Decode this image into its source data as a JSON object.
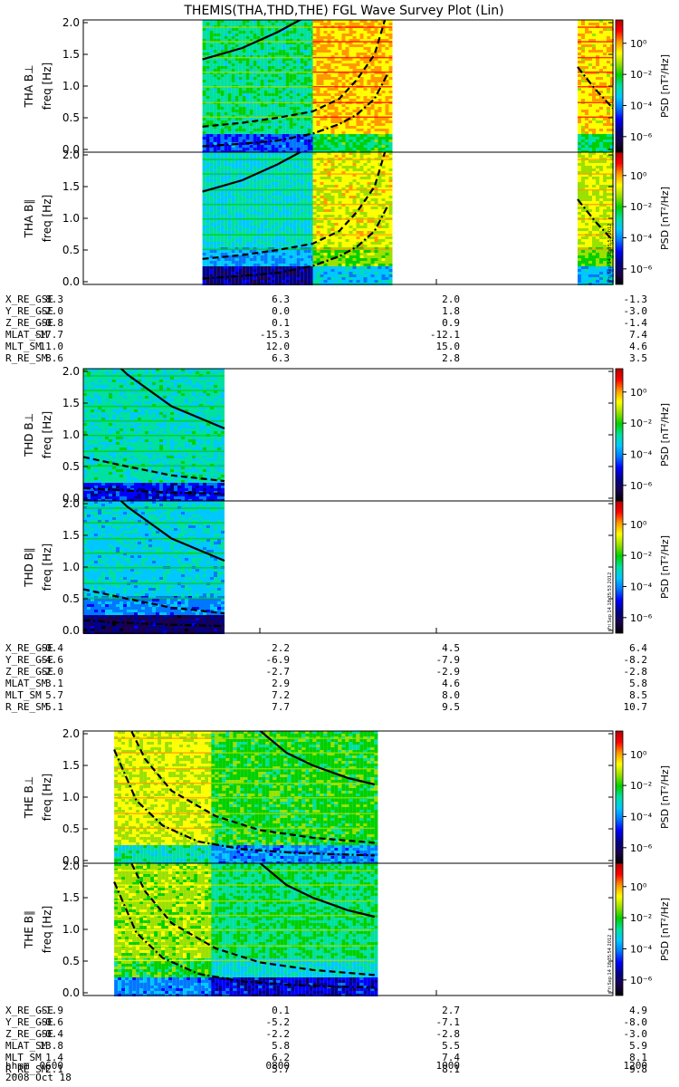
{
  "title": "THEMIS(THA,THD,THE) FGL Wave Survey Plot (Lin)",
  "colorbar": {
    "label": "PSD [nT²/Hz]",
    "ticks": [
      "10⁰",
      "10⁻²",
      "10⁻⁴",
      "10⁻⁶"
    ],
    "log10_values": [
      0,
      -2,
      -4,
      -6
    ],
    "range_log10": [
      -7,
      1.5
    ],
    "colors": [
      "#000000",
      "#1a004d",
      "#00008b",
      "#0000ff",
      "#0077ff",
      "#00c8ff",
      "#00e0a0",
      "#00d000",
      "#9be000",
      "#ffff00",
      "#ff9900",
      "#ff0000",
      "#b00000"
    ]
  },
  "axes": {
    "freq_ticks": [
      "0.0",
      "0.5",
      "1.0",
      "1.5",
      "2.0"
    ],
    "freq_values": [
      0,
      0.5,
      1,
      1.5,
      2
    ],
    "freq_unit_label": "freq [Hz]",
    "time_ticks": [
      "0600",
      "0800",
      "1000",
      "1200"
    ],
    "time_label": "hhmm",
    "date_label": "2008 Oct 18"
  },
  "stamps": [
    "Fri Sep 14 18:35:53 2012",
    "Fri Sep 14 18:35:53 2012",
    "Fri Sep 14 18:35:54 2012"
  ],
  "chart_data": [
    {
      "type": "heatmap",
      "probe": "THA",
      "panels": [
        "THA B⊥",
        "THA B∥"
      ],
      "ylabel": "freq [Hz]",
      "ylim": [
        0,
        2
      ],
      "xlim_hours": [
        6,
        12
      ],
      "data_intervals_hours": [
        [
          7.35,
          8.6
        ],
        [
          8.6,
          9.5
        ],
        [
          11.6,
          12.0
        ]
      ],
      "gyro_curves": [
        {
          "style": "solid",
          "x": [
            7.35,
            7.8,
            8.2,
            8.6,
            8.7,
            8.9,
            9.1,
            9.3,
            9.45
          ],
          "y": [
            1.42,
            1.6,
            1.85,
            2.15,
            2.3,
            2.6,
            3.0,
            3.6,
            4.3
          ]
        },
        {
          "style": "dash",
          "x": [
            7.35,
            7.8,
            8.2,
            8.6,
            8.9,
            9.1,
            9.3,
            9.45
          ],
          "y": [
            0.36,
            0.42,
            0.5,
            0.6,
            0.8,
            1.1,
            1.5,
            2.2
          ]
        },
        {
          "style": "dashdot",
          "x": [
            7.35,
            7.8,
            8.2,
            8.6,
            8.9,
            9.1,
            9.3,
            9.45
          ],
          "y": [
            0.05,
            0.09,
            0.14,
            0.25,
            0.4,
            0.55,
            0.8,
            1.2
          ]
        },
        {
          "style": "dashdot",
          "x": [
            11.6,
            11.8,
            12.0
          ],
          "y": [
            1.3,
            0.95,
            0.65
          ]
        }
      ],
      "ephemeris": [
        {
          "label": "X_RE_GSE",
          "values": [
            "8.3",
            "6.3",
            "2.0",
            "-1.3"
          ]
        },
        {
          "label": "Y_RE_GSE",
          "values": [
            "-2.0",
            "0.0",
            "1.8",
            "-3.0"
          ]
        },
        {
          "label": "Z_RE_GSE",
          "values": [
            "-0.8",
            "0.1",
            "0.9",
            "-1.4"
          ]
        },
        {
          "label": "MLAT_SM",
          "values": [
            "-17.7",
            "-15.3",
            "-12.1",
            "7.4"
          ]
        },
        {
          "label": "MLT_SM",
          "values": [
            "11.0",
            "12.0",
            "15.0",
            "4.6"
          ]
        },
        {
          "label": "R_RE_SM",
          "values": [
            "8.6",
            "6.3",
            "2.8",
            "3.5"
          ]
        }
      ]
    },
    {
      "type": "heatmap",
      "probe": "THD",
      "panels": [
        "THD B⊥",
        "THD B∥"
      ],
      "ylabel": "freq [Hz]",
      "ylim": [
        0,
        2
      ],
      "xlim_hours": [
        6,
        12
      ],
      "data_intervals_hours": [
        [
          6.0,
          7.6
        ]
      ],
      "gyro_curves": [
        {
          "style": "solid",
          "x": [
            6.0,
            6.5,
            7.0,
            7.6
          ],
          "y": [
            2.6,
            1.95,
            1.45,
            1.1
          ]
        },
        {
          "style": "dash",
          "x": [
            6.0,
            6.5,
            7.0,
            7.6
          ],
          "y": [
            0.65,
            0.5,
            0.36,
            0.27
          ]
        },
        {
          "style": "dashdot",
          "x": [
            6.0,
            6.5,
            7.0,
            7.6
          ],
          "y": [
            0.16,
            0.12,
            0.09,
            0.07
          ]
        }
      ],
      "ephemeris": [
        {
          "label": "X_RE_GSE",
          "values": [
            "-0.4",
            "2.2",
            "4.5",
            "6.4"
          ]
        },
        {
          "label": "Y_RE_GSE",
          "values": [
            "-4.6",
            "-6.9",
            "-7.9",
            "-8.2"
          ]
        },
        {
          "label": "Z_RE_GSE",
          "values": [
            "-2.0",
            "-2.7",
            "-2.9",
            "-2.8"
          ]
        },
        {
          "label": "MLAT_SM",
          "values": [
            "3.1",
            "2.9",
            "4.6",
            "5.8"
          ]
        },
        {
          "label": "MLT_SM",
          "values": [
            "5.7",
            "7.2",
            "8.0",
            "8.5"
          ]
        },
        {
          "label": "R_RE_SM",
          "values": [
            "5.1",
            "7.7",
            "9.5",
            "10.7"
          ]
        }
      ]
    },
    {
      "type": "heatmap",
      "probe": "THE",
      "panels": [
        "THE B⊥",
        "THE B∥"
      ],
      "ylabel": "freq [Hz]",
      "ylim": [
        0,
        2
      ],
      "xlim_hours": [
        6,
        12
      ],
      "data_intervals_hours": [
        [
          6.35,
          7.45
        ],
        [
          7.45,
          9.3
        ]
      ],
      "gyro_curves": [
        {
          "style": "solid",
          "x": [
            8.0,
            8.3,
            8.6,
            9.0,
            9.3
          ],
          "y": [
            2.05,
            1.7,
            1.5,
            1.3,
            1.2
          ]
        },
        {
          "style": "dash",
          "x": [
            6.35,
            6.7,
            7.0,
            7.5,
            8.0,
            8.6,
            9.3
          ],
          "y": [
            2.6,
            1.6,
            1.1,
            0.7,
            0.48,
            0.36,
            0.28
          ]
        },
        {
          "style": "dashdot",
          "x": [
            6.35,
            6.6,
            6.9,
            7.3,
            7.8,
            8.4,
            9.3
          ],
          "y": [
            1.75,
            0.95,
            0.55,
            0.3,
            0.18,
            0.12,
            0.08
          ]
        }
      ],
      "ephemeris": [
        {
          "label": "X_RE_GSE",
          "values": [
            "-1.9",
            "0.1",
            "2.7",
            "4.9"
          ]
        },
        {
          "label": "Y_RE_GSE",
          "values": [
            "-0.6",
            "-5.2",
            "-7.1",
            "-8.0"
          ]
        },
        {
          "label": "Z_RE_GSE",
          "values": [
            "-0.4",
            "-2.2",
            "-2.8",
            "-3.0"
          ]
        },
        {
          "label": "MLAT_SM",
          "values": [
            "13.8",
            "5.8",
            "5.5",
            "5.9"
          ]
        },
        {
          "label": "MLT_SM",
          "values": [
            "1.4",
            "6.2",
            "7.4",
            "8.1"
          ]
        },
        {
          "label": "R_RE_SM",
          "values": [
            "2.1",
            "5.7",
            "8.1",
            "9.8"
          ]
        }
      ]
    }
  ]
}
